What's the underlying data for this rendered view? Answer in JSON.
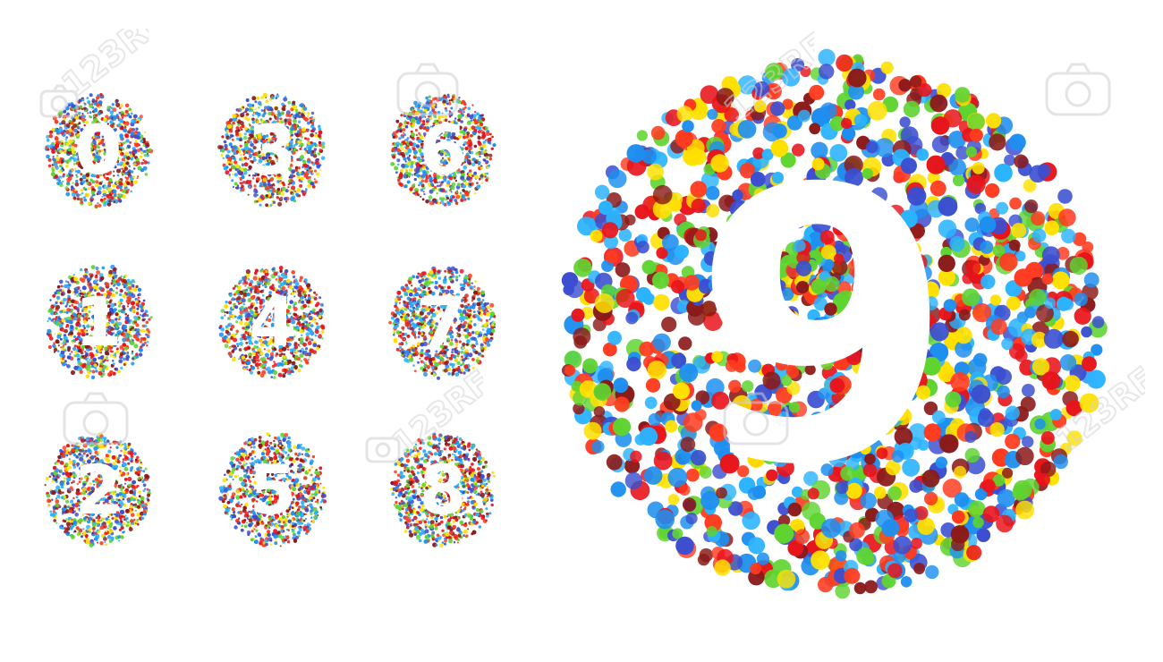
{
  "digits": [
    {
      "label": "0"
    },
    {
      "label": "3"
    },
    {
      "label": "6"
    },
    {
      "label": "1"
    },
    {
      "label": "4"
    },
    {
      "label": "7"
    },
    {
      "label": "2"
    },
    {
      "label": "5"
    },
    {
      "label": "8"
    }
  ],
  "large_digit": {
    "label": "9"
  },
  "watermark": {
    "text": "123RF"
  },
  "palette": [
    "#e8141b",
    "#1e8ff0",
    "#5fd431",
    "#ffe000",
    "#8b1a1a",
    "#3b4fd0",
    "#2bb3ff",
    "#ff3b1f"
  ],
  "icons": {
    "confetti": "confetti-dot",
    "watermark": "camera-logo-icon"
  }
}
